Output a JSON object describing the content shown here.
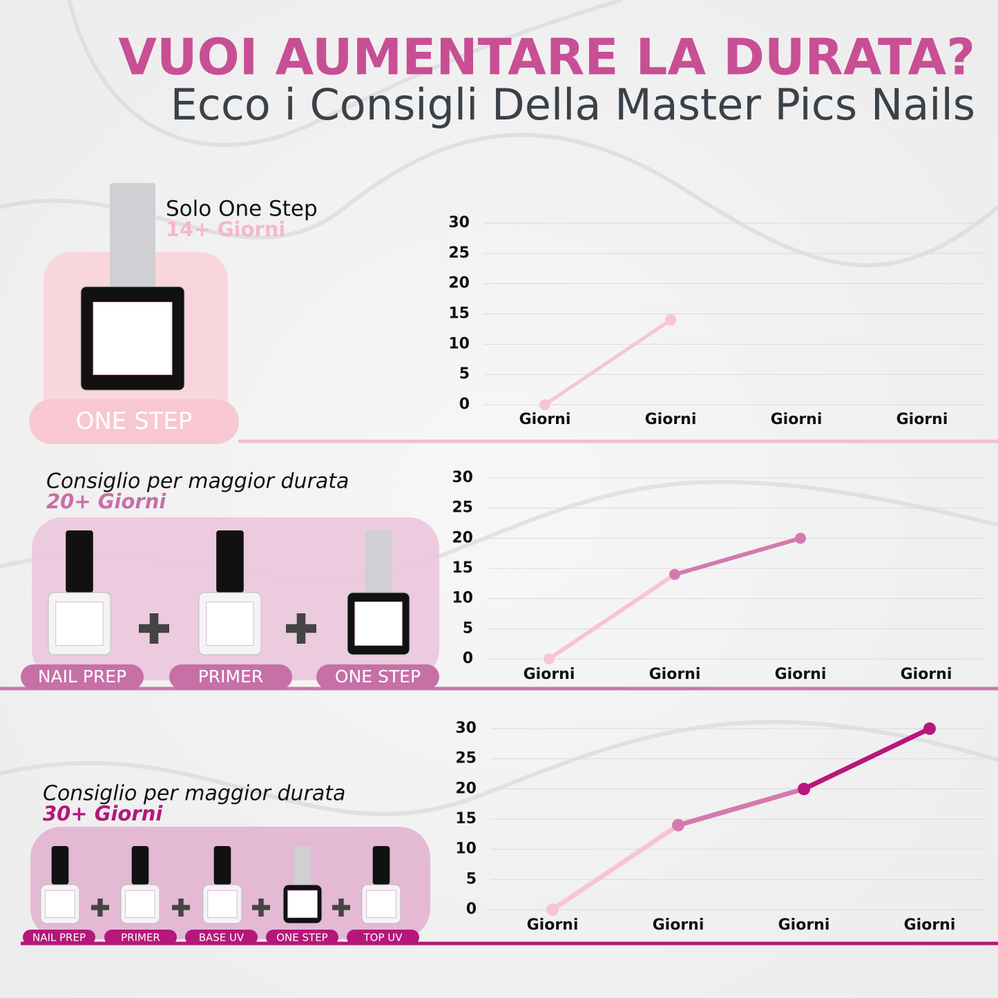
{
  "header": {
    "title": "VUOI AUMENTARE LA DURATA?",
    "subtitle": "Ecco i Consigli Della Master Pics Nails"
  },
  "sections": [
    {
      "title": "Solo One Step",
      "duration": "14+ Giorni",
      "products": [
        "ONE STEP"
      ]
    },
    {
      "title": "Consiglio per maggior durata",
      "duration": "20+ Giorni",
      "products": [
        "NAIL PREP",
        "PRIMER",
        "ONE STEP"
      ]
    },
    {
      "title": "Consiglio per maggior durata",
      "duration": "30+ Giorni",
      "products": [
        "NAIL PREP",
        "PRIMER",
        "BASE UV",
        "ONE STEP",
        "TOP UV"
      ]
    }
  ],
  "chart_data": [
    {
      "type": "line",
      "categories": [
        "Giorni",
        "Giorni",
        "Giorni",
        "Giorni"
      ],
      "series": [
        {
          "color": "#f7c5d0",
          "values": [
            0,
            14,
            null,
            null
          ]
        }
      ],
      "ylim": [
        0,
        30
      ],
      "yticks": [
        0,
        5,
        10,
        15,
        20,
        25,
        30
      ],
      "grid": true
    },
    {
      "type": "line",
      "categories": [
        "Giorni",
        "Giorni",
        "Giorni",
        "Giorni"
      ],
      "series": [
        {
          "color": "#f7c5d0",
          "values": [
            0,
            14,
            null,
            null
          ]
        },
        {
          "color": "#d27ab0",
          "values": [
            null,
            14,
            20,
            null
          ]
        }
      ],
      "ylim": [
        0,
        30
      ],
      "yticks": [
        0,
        5,
        10,
        15,
        20,
        25,
        30
      ],
      "grid": true
    },
    {
      "type": "line",
      "categories": [
        "Giorni",
        "Giorni",
        "Giorni",
        "Giorni"
      ],
      "series": [
        {
          "color": "#f7c5d0",
          "values": [
            0,
            14,
            null,
            null
          ]
        },
        {
          "color": "#d27ab0",
          "values": [
            null,
            14,
            20,
            null
          ]
        },
        {
          "color": "#b8167d",
          "values": [
            null,
            null,
            20,
            30
          ]
        }
      ],
      "ylim": [
        0,
        30
      ],
      "yticks": [
        0,
        5,
        10,
        15,
        20,
        25,
        30
      ],
      "grid": true
    }
  ]
}
